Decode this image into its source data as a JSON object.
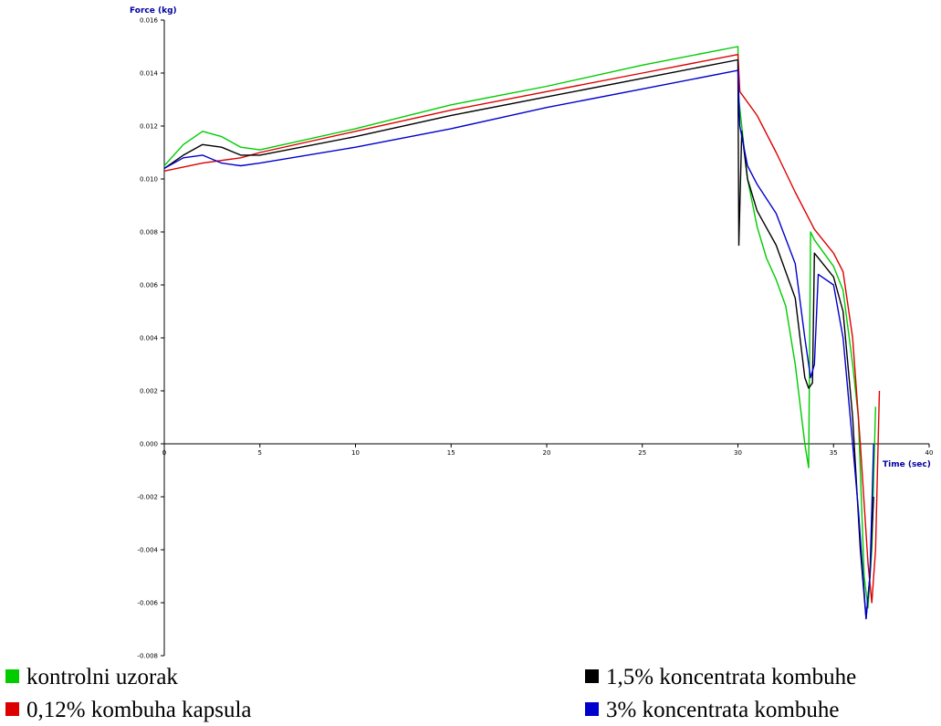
{
  "chart_data": {
    "type": "line",
    "xlabel": "Time (sec)",
    "ylabel": "Force (kg)",
    "xlim": [
      0,
      40
    ],
    "ylim": [
      -0.008,
      0.016
    ],
    "x_ticks": [
      "0",
      "5",
      "10",
      "15",
      "20",
      "25",
      "30",
      "35",
      "40"
    ],
    "y_ticks": [
      "0.016",
      "0.014",
      "0.012",
      "0.010",
      "0.008",
      "0.006",
      "0.004",
      "0.002",
      "0.000",
      "-0.002",
      "-0.004",
      "-0.006",
      "-0.008"
    ],
    "grid": false,
    "legend_position": "bottom",
    "series": [
      {
        "name": "kontrolni uzorak",
        "color": "#00cc00",
        "points": [
          [
            0,
            0.0105
          ],
          [
            1,
            0.0113
          ],
          [
            2,
            0.0118
          ],
          [
            3,
            0.0116
          ],
          [
            4,
            0.0112
          ],
          [
            5,
            0.0111
          ],
          [
            10,
            0.0119
          ],
          [
            15,
            0.0128
          ],
          [
            20,
            0.0135
          ],
          [
            25,
            0.0143
          ],
          [
            30,
            0.015
          ],
          [
            30.05,
            0.013
          ],
          [
            30.5,
            0.01
          ],
          [
            31,
            0.0082
          ],
          [
            31.5,
            0.007
          ],
          [
            32,
            0.0062
          ],
          [
            32.5,
            0.0052
          ],
          [
            33,
            0.003
          ],
          [
            33.5,
            0.0
          ],
          [
            33.7,
            -0.0009
          ],
          [
            33.8,
            0.008
          ],
          [
            34,
            0.0077
          ],
          [
            34.5,
            0.0072
          ],
          [
            35,
            0.0067
          ],
          [
            35.5,
            0.0058
          ],
          [
            36,
            0.003
          ],
          [
            36.3,
            0.001
          ],
          [
            36.6,
            -0.005
          ],
          [
            36.8,
            -0.0062
          ],
          [
            37,
            -0.004
          ],
          [
            37.2,
            0.0014
          ]
        ]
      },
      {
        "name": "0,12% kombuha kapsula",
        "color": "#dd0000",
        "points": [
          [
            0,
            0.0103
          ],
          [
            2,
            0.0106
          ],
          [
            4,
            0.0108
          ],
          [
            5,
            0.011
          ],
          [
            10,
            0.0118
          ],
          [
            15,
            0.0126
          ],
          [
            20,
            0.0133
          ],
          [
            25,
            0.014
          ],
          [
            30,
            0.0147
          ],
          [
            30.1,
            0.0133
          ],
          [
            31,
            0.0124
          ],
          [
            32,
            0.011
          ],
          [
            33,
            0.0095
          ],
          [
            34,
            0.0081
          ],
          [
            35,
            0.0072
          ],
          [
            35.5,
            0.0065
          ],
          [
            36,
            0.004
          ],
          [
            36.4,
            0.0
          ],
          [
            36.8,
            -0.0045
          ],
          [
            37,
            -0.006
          ],
          [
            37.2,
            -0.004
          ],
          [
            37.4,
            0.002
          ]
        ]
      },
      {
        "name": "1,5% koncentrata kombuhe",
        "color": "#000000",
        "points": [
          [
            0,
            0.0104
          ],
          [
            1,
            0.0109
          ],
          [
            2,
            0.0113
          ],
          [
            3,
            0.0112
          ],
          [
            4,
            0.0109
          ],
          [
            5,
            0.0109
          ],
          [
            10,
            0.0116
          ],
          [
            15,
            0.0124
          ],
          [
            20,
            0.0131
          ],
          [
            25,
            0.0138
          ],
          [
            30,
            0.0145
          ],
          [
            30.05,
            0.0075
          ],
          [
            30.2,
            0.0118
          ],
          [
            30.5,
            0.01
          ],
          [
            31,
            0.0088
          ],
          [
            32,
            0.0075
          ],
          [
            33,
            0.0055
          ],
          [
            33.5,
            0.0025
          ],
          [
            33.7,
            0.0021
          ],
          [
            33.9,
            0.0023
          ],
          [
            34,
            0.0072
          ],
          [
            35,
            0.0063
          ],
          [
            35.5,
            0.005
          ],
          [
            36,
            0.001
          ],
          [
            36.4,
            -0.004
          ],
          [
            36.7,
            -0.0066
          ],
          [
            36.9,
            -0.005
          ],
          [
            37.1,
            -0.002
          ]
        ]
      },
      {
        "name": "3% koncentrata kombuhe",
        "color": "#0000cc",
        "points": [
          [
            0,
            0.0104
          ],
          [
            1,
            0.0108
          ],
          [
            2,
            0.0109
          ],
          [
            3,
            0.0106
          ],
          [
            4,
            0.0105
          ],
          [
            5,
            0.0106
          ],
          [
            10,
            0.0112
          ],
          [
            15,
            0.0119
          ],
          [
            20,
            0.0127
          ],
          [
            25,
            0.0134
          ],
          [
            30,
            0.0141
          ],
          [
            30.1,
            0.012
          ],
          [
            30.5,
            0.0105
          ],
          [
            31,
            0.0098
          ],
          [
            32,
            0.0087
          ],
          [
            33,
            0.0068
          ],
          [
            33.5,
            0.004
          ],
          [
            33.8,
            0.0025
          ],
          [
            34,
            0.003
          ],
          [
            34.2,
            0.0064
          ],
          [
            35,
            0.006
          ],
          [
            35.5,
            0.004
          ],
          [
            36,
            0.0
          ],
          [
            36.3,
            -0.0025
          ],
          [
            36.7,
            -0.0066
          ],
          [
            36.9,
            -0.005
          ],
          [
            37.1,
            0.0
          ]
        ]
      }
    ]
  }
}
